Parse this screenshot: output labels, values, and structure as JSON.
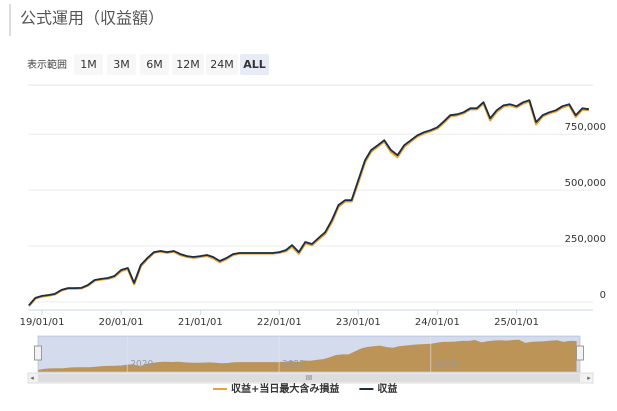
{
  "chart_data": {
    "type": "line",
    "title": "公式運用（収益額）",
    "range_selector": {
      "label": "表示範囲",
      "buttons": [
        "1M",
        "3M",
        "6M",
        "12M",
        "24M",
        "ALL"
      ],
      "selected": "ALL"
    },
    "x": [
      "2018-11-01",
      "2018-12-01",
      "2019-01-01",
      "2019-02-01",
      "2019-03-01",
      "2019-04-01",
      "2019-05-01",
      "2019-06-01",
      "2019-07-01",
      "2019-08-01",
      "2019-09-01",
      "2019-10-01",
      "2019-11-01",
      "2019-12-01",
      "2020-01-01",
      "2020-02-01",
      "2020-03-01",
      "2020-04-01",
      "2020-05-01",
      "2020-06-01",
      "2020-07-01",
      "2020-08-01",
      "2020-09-01",
      "2020-10-01",
      "2020-11-01",
      "2020-12-01",
      "2021-01-01",
      "2021-02-01",
      "2021-03-01",
      "2021-04-01",
      "2021-05-01",
      "2021-06-01",
      "2021-07-01",
      "2021-08-01",
      "2021-09-01",
      "2021-10-01",
      "2021-11-01",
      "2021-12-01",
      "2022-01-01",
      "2022-02-01",
      "2022-03-01",
      "2022-04-01",
      "2022-05-01",
      "2022-06-01",
      "2022-07-01",
      "2022-08-01",
      "2022-09-01",
      "2022-10-01",
      "2022-11-01",
      "2022-12-01",
      "2023-01-01",
      "2023-02-01",
      "2023-03-01",
      "2023-04-01",
      "2023-05-01",
      "2023-06-01",
      "2023-07-01",
      "2023-08-01",
      "2023-09-01",
      "2023-10-01",
      "2023-11-01",
      "2023-12-01",
      "2024-01-01",
      "2024-02-01",
      "2024-03-01",
      "2024-04-01",
      "2024-05-01",
      "2024-06-01",
      "2024-07-01",
      "2024-08-01",
      "2024-09-01",
      "2024-10-01",
      "2024-11-01",
      "2024-12-01",
      "2025-01-01",
      "2025-02-01",
      "2025-03-01",
      "2025-04-01",
      "2025-05-01",
      "2025-06-01",
      "2025-07-01",
      "2025-08-01",
      "2025-09-01",
      "2025-10-01",
      "2025-11-01",
      "2025-12-01"
    ],
    "series": [
      {
        "name": "収益+当日最大含み損益",
        "color": "#e8a23a",
        "values": [
          -18000,
          16000,
          25000,
          29000,
          34000,
          52000,
          60000,
          60000,
          61000,
          74000,
          96000,
          101000,
          104000,
          112000,
          138000,
          148000,
          80000,
          160000,
          192000,
          220000,
          226000,
          220000,
          225000,
          210000,
          202000,
          198000,
          202000,
          207000,
          196000,
          178000,
          192000,
          211000,
          217000,
          217000,
          217000,
          217000,
          217000,
          217000,
          220000,
          228000,
          248000,
          216000,
          262000,
          254000,
          280000,
          305000,
          358000,
          425000,
          450000,
          450000,
          535000,
          626000,
          672000,
          695000,
          718000,
          670000,
          648000,
          694000,
          718000,
          740000,
          754000,
          764000,
          776000,
          803000,
          830000,
          835000,
          844000,
          862000,
          862000,
          888000,
          812000,
          850000,
          874000,
          880000,
          870000,
          888000,
          897000,
          795000,
          830000,
          844000,
          852000,
          870000,
          880000,
          828000,
          860000,
          858000
        ]
      },
      {
        "name": "収益",
        "color": "#1c2e3f",
        "values": [
          -15000,
          18000,
          27000,
          31000,
          36000,
          54000,
          62000,
          62000,
          63000,
          76000,
          98000,
          103000,
          107000,
          116000,
          143000,
          152000,
          85000,
          165000,
          196000,
          223000,
          228000,
          223000,
          228000,
          214000,
          205000,
          201000,
          205000,
          210000,
          201000,
          183000,
          196000,
          214000,
          219000,
          219000,
          219000,
          219000,
          219000,
          219000,
          223000,
          232000,
          254000,
          223000,
          268000,
          259000,
          286000,
          312000,
          366000,
          433000,
          455000,
          455000,
          545000,
          634000,
          679000,
          701000,
          723000,
          679000,
          656000,
          701000,
          723000,
          745000,
          759000,
          768000,
          781000,
          808000,
          835000,
          839000,
          848000,
          866000,
          866000,
          893000,
          821000,
          857000,
          879000,
          884000,
          875000,
          893000,
          902000,
          804000,
          835000,
          848000,
          857000,
          875000,
          884000,
          835000,
          866000,
          862000
        ]
      }
    ],
    "xlim": [
      "2018-10-28",
      "2025-12-20"
    ],
    "xticks": [
      {
        "value": "2019-01-01",
        "label": "19/01/01"
      },
      {
        "value": "2020-01-01",
        "label": "20/01/01"
      },
      {
        "value": "2021-01-01",
        "label": "21/01/01"
      },
      {
        "value": "2022-01-01",
        "label": "22/01/01"
      },
      {
        "value": "2023-01-01",
        "label": "23/01/01"
      },
      {
        "value": "2024-01-01",
        "label": "24/01/01"
      },
      {
        "value": "2025-01-01",
        "label": "25/01/01"
      }
    ],
    "ylim": [
      -36000,
      970000
    ],
    "yticks": [
      0,
      {
        "value": 250000,
        "label": "250,000"
      },
      {
        "value": 500000,
        "label": "500,000"
      },
      {
        "value": 750000,
        "label": "750,000"
      }
    ],
    "grid": true,
    "navigator": {
      "color": "#d99a35",
      "xticks": [
        {
          "value": "2020-01-01",
          "label": "2020"
        },
        {
          "value": "2022-01-01",
          "label": "2022"
        },
        {
          "value": "2024-01-01",
          "label": "2024"
        }
      ]
    }
  }
}
